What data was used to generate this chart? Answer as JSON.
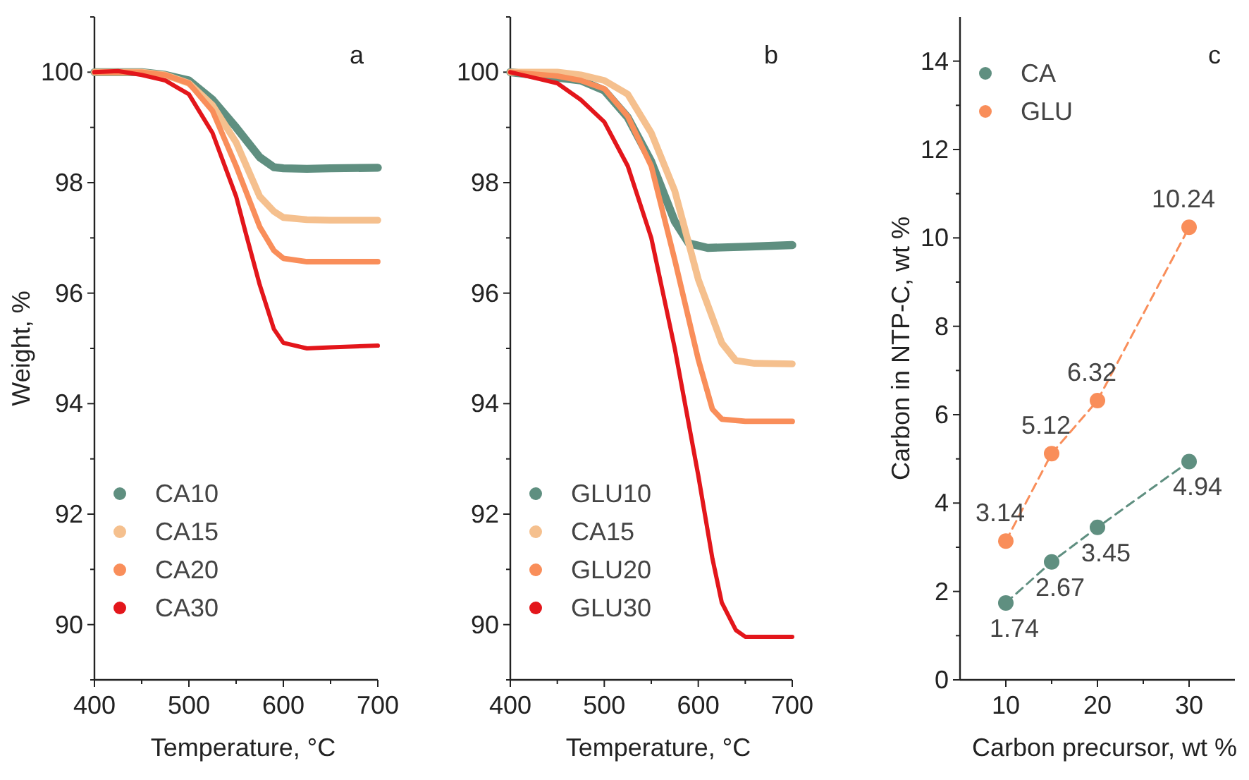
{
  "chart_data": [
    {
      "type": "line",
      "title": "a",
      "xlabel": "Temperature, °C",
      "ylabel": "Weight, %",
      "xlim": [
        400,
        700
      ],
      "ylim": [
        89,
        101
      ],
      "xticks": [
        400,
        {
          "value": 450,
          "label": null
        },
        500,
        {
          "value": 550,
          "label": null
        },
        600,
        {
          "value": 650,
          "label": null
        },
        700
      ],
      "yticks": [
        {
          "value": 89,
          "label": null
        },
        90,
        {
          "value": 91,
          "label": null
        },
        92,
        {
          "value": 93,
          "label": null
        },
        94,
        {
          "value": 95,
          "label": null
        },
        96,
        {
          "value": 97,
          "label": null
        },
        98,
        {
          "value": 99,
          "label": null
        },
        100,
        {
          "value": 101,
          "label": null
        }
      ],
      "grid": false,
      "legend": "bottom left",
      "marker": "none",
      "line_style": "solid",
      "series": [
        {
          "name": "CA10",
          "color": "#5f8f80",
          "x": [
            400,
            450,
            475,
            500,
            525,
            550,
            575,
            590,
            600,
            625,
            650,
            700
          ],
          "values": [
            100,
            100,
            99.95,
            99.85,
            99.5,
            99.0,
            98.46,
            98.28,
            98.26,
            98.25,
            98.26,
            98.27
          ]
        },
        {
          "name": "CA15",
          "color": "#f5c08e",
          "x": [
            400,
            450,
            475,
            500,
            525,
            550,
            575,
            590,
            600,
            625,
            650,
            700
          ],
          "values": [
            100,
            100,
            99.95,
            99.8,
            99.4,
            98.73,
            97.75,
            97.48,
            97.37,
            97.33,
            97.32,
            97.32
          ]
        },
        {
          "name": "CA20",
          "color": "#f98e5a",
          "x": [
            400,
            450,
            475,
            500,
            525,
            550,
            575,
            590,
            600,
            625,
            650,
            700
          ],
          "values": [
            100,
            100,
            99.95,
            99.8,
            99.3,
            98.3,
            97.2,
            96.77,
            96.63,
            96.57,
            96.57,
            96.57
          ]
        },
        {
          "name": "CA30",
          "color": "#e3161b",
          "x": [
            400,
            425,
            450,
            475,
            500,
            525,
            550,
            560,
            575,
            590,
            600,
            625,
            650,
            700
          ],
          "values": [
            100,
            100.02,
            99.95,
            99.85,
            99.6,
            98.9,
            97.75,
            97.1,
            96.15,
            95.35,
            95.1,
            95.0,
            95.02,
            95.05
          ]
        }
      ]
    },
    {
      "type": "line",
      "title": "b",
      "xlabel": "Temperature, °C",
      "xlim": [
        400,
        700
      ],
      "ylim": [
        89,
        101
      ],
      "xticks": [
        400,
        {
          "value": 450,
          "label": null
        },
        500,
        {
          "value": 550,
          "label": null
        },
        600,
        {
          "value": 650,
          "label": null
        },
        700
      ],
      "yticks": [
        {
          "value": 89,
          "label": null
        },
        90,
        {
          "value": 91,
          "label": null
        },
        92,
        {
          "value": 93,
          "label": null
        },
        94,
        {
          "value": 95,
          "label": null
        },
        96,
        {
          "value": 97,
          "label": null
        },
        98,
        {
          "value": 99,
          "label": null
        },
        100,
        {
          "value": 101,
          "label": null
        }
      ],
      "grid": false,
      "legend": "bottom left",
      "marker": "none",
      "line_style": "solid",
      "series": [
        {
          "name": "GLU10",
          "color": "#5f8f80",
          "x": [
            400,
            450,
            475,
            500,
            525,
            550,
            575,
            590,
            610,
            650,
            700
          ],
          "values": [
            100,
            99.9,
            99.85,
            99.67,
            99.18,
            98.38,
            97.3,
            96.9,
            96.82,
            96.84,
            96.87
          ]
        },
        {
          "name": "CA15",
          "color": "#f5c08e",
          "x": [
            400,
            450,
            475,
            500,
            525,
            550,
            575,
            600,
            625,
            640,
            660,
            700
          ],
          "values": [
            100,
            100,
            99.95,
            99.85,
            99.6,
            98.9,
            97.85,
            96.25,
            95.1,
            94.78,
            94.73,
            94.72
          ]
        },
        {
          "name": "GLU20",
          "color": "#f98e5a",
          "x": [
            400,
            450,
            475,
            500,
            525,
            550,
            575,
            600,
            615,
            625,
            650,
            700
          ],
          "values": [
            100,
            99.93,
            99.85,
            99.7,
            99.2,
            98.3,
            96.6,
            94.8,
            93.9,
            93.72,
            93.68,
            93.68
          ]
        },
        {
          "name": "GLU30",
          "color": "#e3161b",
          "x": [
            400,
            450,
            475,
            500,
            525,
            550,
            575,
            600,
            615,
            625,
            640,
            650,
            700
          ],
          "values": [
            100,
            99.8,
            99.5,
            99.1,
            98.3,
            97.0,
            95.0,
            92.7,
            91.2,
            90.4,
            89.9,
            89.78,
            89.78
          ]
        }
      ]
    },
    {
      "type": "line",
      "title": "c",
      "xlabel": "Carbon precursor, wt %",
      "ylabel": "Carbon in NTP-C, wt %",
      "xlim": [
        5,
        35
      ],
      "ylim": [
        0,
        15
      ],
      "xticks": [
        10,
        {
          "value": 15,
          "label": null
        },
        20,
        {
          "value": 25,
          "label": null
        },
        30
      ],
      "yticks": [
        0,
        {
          "value": 1,
          "label": null
        },
        2,
        {
          "value": 3,
          "label": null
        },
        4,
        {
          "value": 5,
          "label": null
        },
        6,
        {
          "value": 7,
          "label": null
        },
        8,
        {
          "value": 9,
          "label": null
        },
        10,
        {
          "value": 11,
          "label": null
        },
        12,
        {
          "value": 13,
          "label": null
        },
        14
      ],
      "grid": false,
      "legend": "top left",
      "marker": "circle",
      "line_style": "dashed",
      "data_labels": true,
      "series": [
        {
          "name": "CA",
          "color": "#5f8f80",
          "x": [
            10,
            15,
            20,
            30
          ],
          "values": [
            1.74,
            2.67,
            3.45,
            4.94
          ]
        },
        {
          "name": "GLU",
          "color": "#f98e5a",
          "x": [
            10,
            15,
            20,
            30
          ],
          "values": [
            3.14,
            5.12,
            6.32,
            10.24
          ]
        }
      ]
    }
  ]
}
